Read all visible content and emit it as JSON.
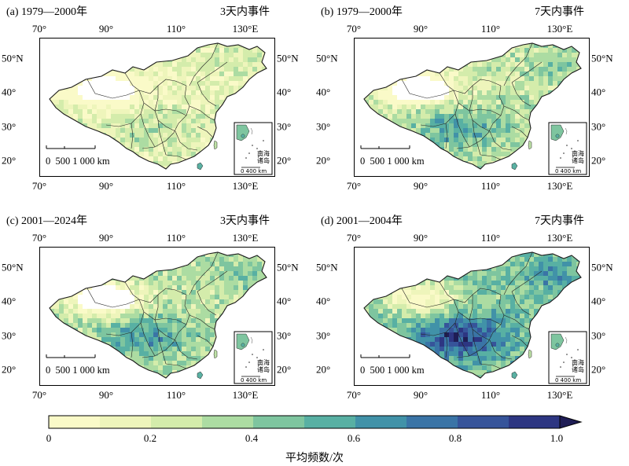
{
  "panels": [
    {
      "title": "(a) 1979—2000年",
      "event": "3天内事件",
      "intensity": 0.22
    },
    {
      "title": "(b) 1979—2000年",
      "event": "7天内事件",
      "intensity": 0.42
    },
    {
      "title": "(c) 2001—2024年",
      "event": "3天内事件",
      "intensity": 0.45
    },
    {
      "title": "(d) 2001—2004年",
      "event": "7天内事件",
      "intensity": 0.7
    }
  ],
  "axes": {
    "lon_ticks": [
      "70°",
      "90°",
      "110°",
      "130°E"
    ],
    "lat_ticks": [
      "50°N",
      "40°",
      "30°",
      "20°"
    ]
  },
  "scalebar": {
    "label": "0  500 1 000 km"
  },
  "inset": {
    "label_line1": "南海",
    "label_line2": "诸岛",
    "scale": "0 400 km"
  },
  "colorbar": {
    "ticks": [
      "0",
      "0.2",
      "0.4",
      "0.6",
      "0.8",
      "1.0"
    ],
    "label": "平均频数/次",
    "colors": [
      "#fafac8",
      "#eef5bb",
      "#d4ecab",
      "#acdca2",
      "#7ec59f",
      "#58b0a3",
      "#4192a8",
      "#3a74a6",
      "#36549a",
      "#2d3682",
      "#1f1d55"
    ]
  }
}
